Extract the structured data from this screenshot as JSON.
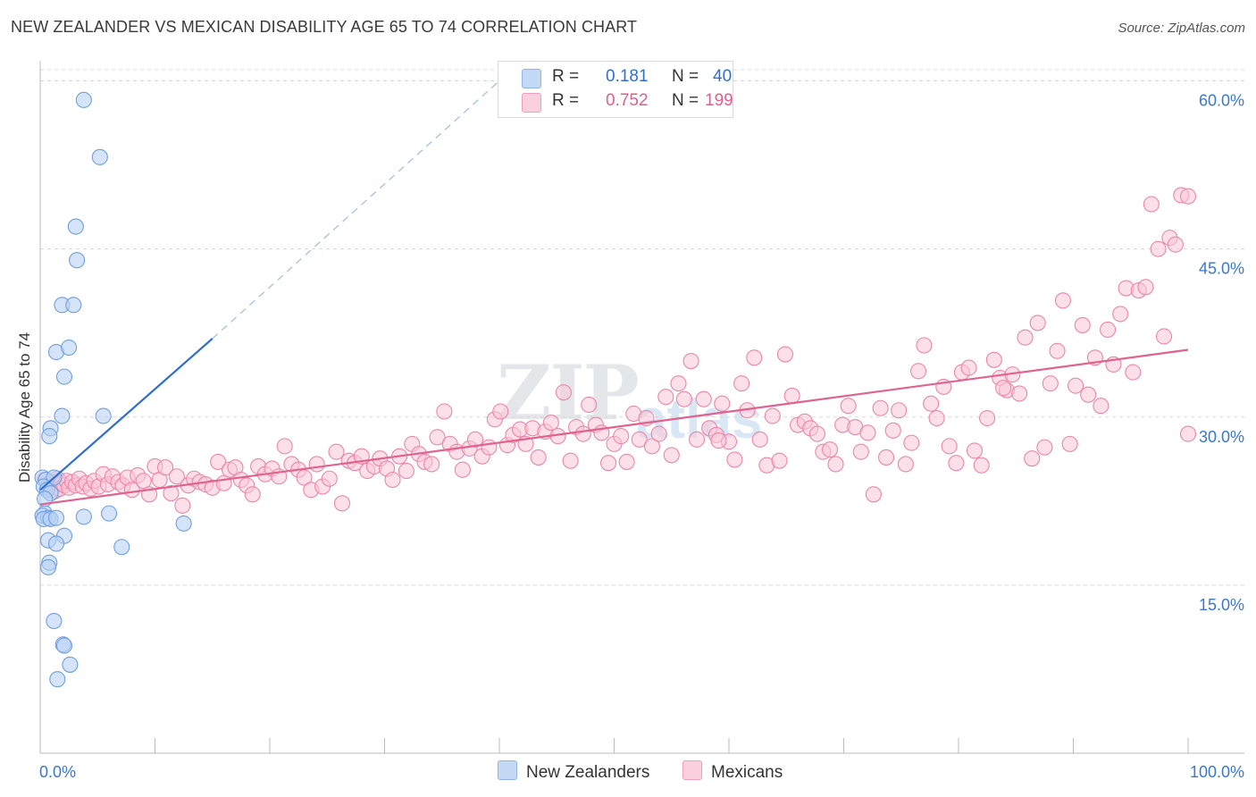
{
  "header": {
    "title": "NEW ZEALANDER VS MEXICAN DISABILITY AGE 65 TO 74 CORRELATION CHART",
    "source": "Source: ZipAtlas.com"
  },
  "watermark": {
    "part1": "ZIP",
    "part2": "atlas"
  },
  "legend": {
    "r_label": "R =",
    "n_label": "N =",
    "rows": [
      {
        "name": "New Zealanders",
        "r": "0.181",
        "n": "40",
        "color": "#a7c6f0"
      },
      {
        "name": "Mexicans",
        "r": "0.752",
        "n": "199",
        "color": "#f6b8cd"
      }
    ]
  },
  "colors": {
    "blue_fill": "#b9d2f3",
    "blue_stroke": "#6f9fe0",
    "blue_line": "#2e6fd0",
    "pink_fill": "#f9c6d7",
    "pink_stroke": "#ec86a8",
    "pink_line": "#e0628f",
    "axis_text": "#3a78d0",
    "grid": "#d8d8d8"
  },
  "chart_data": {
    "type": "scatter",
    "title": "NEW ZEALANDER VS MEXICAN DISABILITY AGE 65 TO 74 CORRELATION CHART",
    "xlabel": "",
    "ylabel": "Disability Age 65 to 74",
    "xlim": [
      0,
      100
    ],
    "ylim": [
      0,
      61
    ],
    "x_tick_labels": [
      "0.0%",
      "100.0%"
    ],
    "y_ticks": [
      15,
      30,
      45,
      60
    ],
    "y_tick_labels": [
      "15.0%",
      "30.0%",
      "45.0%",
      "60.0%"
    ],
    "series": [
      {
        "name": "New Zealanders",
        "trend": {
          "x": [
            0,
            15
          ],
          "y": [
            23.5,
            37
          ],
          "dashed_to": [
            40,
            60
          ]
        },
        "points": [
          [
            3.8,
            58.3
          ],
          [
            5.2,
            53.2
          ],
          [
            3.1,
            47
          ],
          [
            3.2,
            44
          ],
          [
            1.9,
            40
          ],
          [
            2.9,
            40
          ],
          [
            1.4,
            35.8
          ],
          [
            2.5,
            36.2
          ],
          [
            2.1,
            33.6
          ],
          [
            1.9,
            30.1
          ],
          [
            5.5,
            30.1
          ],
          [
            0.9,
            29
          ],
          [
            0.8,
            28.3
          ],
          [
            0.2,
            24.6
          ],
          [
            0.5,
            24.4
          ],
          [
            1.2,
            24.6
          ],
          [
            0.3,
            23.8
          ],
          [
            0.6,
            23.5
          ],
          [
            0.9,
            23.2
          ],
          [
            0.4,
            22.7
          ],
          [
            0.4,
            21.4
          ],
          [
            0.2,
            21.2
          ],
          [
            0.7,
            21
          ],
          [
            0.3,
            20.9
          ],
          [
            0.9,
            20.9
          ],
          [
            1.4,
            21
          ],
          [
            3.8,
            21.1
          ],
          [
            6.0,
            21.4
          ],
          [
            12.5,
            20.5
          ],
          [
            2.1,
            19.4
          ],
          [
            0.7,
            19
          ],
          [
            1.4,
            18.7
          ],
          [
            7.1,
            18.4
          ],
          [
            0.8,
            17
          ],
          [
            0.7,
            16.6
          ],
          [
            1.2,
            11.8
          ],
          [
            2.0,
            9.7
          ],
          [
            2.1,
            9.6
          ],
          [
            2.6,
            7.9
          ],
          [
            1.5,
            6.6
          ]
        ]
      },
      {
        "name": "Mexicans",
        "trend": {
          "x": [
            0,
            100
          ],
          "y": [
            22.2,
            36
          ]
        },
        "points": [
          [
            0.4,
            24.4
          ],
          [
            0.7,
            24.0
          ],
          [
            0.8,
            23.8
          ],
          [
            1.0,
            23.5
          ],
          [
            1.1,
            24.2
          ],
          [
            1.3,
            23.4
          ],
          [
            1.5,
            24.5
          ],
          [
            1.7,
            23.6
          ],
          [
            1.9,
            24.1
          ],
          [
            2.1,
            23.9
          ],
          [
            2.3,
            24.3
          ],
          [
            2.5,
            23.7
          ],
          [
            2.8,
            24.2
          ],
          [
            3.1,
            23.9
          ],
          [
            3.4,
            24.5
          ],
          [
            3.7,
            23.8
          ],
          [
            4.0,
            24.1
          ],
          [
            4.4,
            23.6
          ],
          [
            4.7,
            24.3
          ],
          [
            5.1,
            23.8
          ],
          [
            5.5,
            24.9
          ],
          [
            5.9,
            24.0
          ],
          [
            6.3,
            24.7
          ],
          [
            6.8,
            24.2
          ],
          [
            7.2,
            23.9
          ],
          [
            7.6,
            24.6
          ],
          [
            8.0,
            23.5
          ],
          [
            8.5,
            24.8
          ],
          [
            9.0,
            24.3
          ],
          [
            9.5,
            23.1
          ],
          [
            10.0,
            25.6
          ],
          [
            10.4,
            24.4
          ],
          [
            10.9,
            25.5
          ],
          [
            11.4,
            23.2
          ],
          [
            11.9,
            24.7
          ],
          [
            12.4,
            22.1
          ],
          [
            12.9,
            23.9
          ],
          [
            13.4,
            24.5
          ],
          [
            13.9,
            24.2
          ],
          [
            14.4,
            24.0
          ],
          [
            15.0,
            23.7
          ],
          [
            15.5,
            26.0
          ],
          [
            16.0,
            24.1
          ],
          [
            16.5,
            25.3
          ],
          [
            17.0,
            25.5
          ],
          [
            17.5,
            24.4
          ],
          [
            18.0,
            23.9
          ],
          [
            18.5,
            23.1
          ],
          [
            19.0,
            25.6
          ],
          [
            19.6,
            24.9
          ],
          [
            20.2,
            25.4
          ],
          [
            20.8,
            24.7
          ],
          [
            21.3,
            27.4
          ],
          [
            21.9,
            25.8
          ],
          [
            22.5,
            25.3
          ],
          [
            23.0,
            24.6
          ],
          [
            23.6,
            23.5
          ],
          [
            24.1,
            25.8
          ],
          [
            24.6,
            23.8
          ],
          [
            25.2,
            24.5
          ],
          [
            25.8,
            26.9
          ],
          [
            26.3,
            22.3
          ],
          [
            26.9,
            26.1
          ],
          [
            27.4,
            25.9
          ],
          [
            28.0,
            26.5
          ],
          [
            28.5,
            25.2
          ],
          [
            29.1,
            25.6
          ],
          [
            29.6,
            26.3
          ],
          [
            30.2,
            25.4
          ],
          [
            30.7,
            24.4
          ],
          [
            31.3,
            26.5
          ],
          [
            31.9,
            25.2
          ],
          [
            32.4,
            27.6
          ],
          [
            33.0,
            26.7
          ],
          [
            33.5,
            26.0
          ],
          [
            34.1,
            25.8
          ],
          [
            34.6,
            28.2
          ],
          [
            35.2,
            30.5
          ],
          [
            35.7,
            27.6
          ],
          [
            36.3,
            26.9
          ],
          [
            36.8,
            25.3
          ],
          [
            37.4,
            27.2
          ],
          [
            37.9,
            28.0
          ],
          [
            38.5,
            26.5
          ],
          [
            39.1,
            27.3
          ],
          [
            39.6,
            29.8
          ],
          [
            40.1,
            30.5
          ],
          [
            40.7,
            27.5
          ],
          [
            41.2,
            28.4
          ],
          [
            41.8,
            28.9
          ],
          [
            42.3,
            27.6
          ],
          [
            42.9,
            29.0
          ],
          [
            43.4,
            26.4
          ],
          [
            44.0,
            28.7
          ],
          [
            44.5,
            29.5
          ],
          [
            45.1,
            28.3
          ],
          [
            45.6,
            32.2
          ],
          [
            46.2,
            26.1
          ],
          [
            46.7,
            29.1
          ],
          [
            47.3,
            28.5
          ],
          [
            47.8,
            31.1
          ],
          [
            48.4,
            29.3
          ],
          [
            48.9,
            28.6
          ],
          [
            49.5,
            25.9
          ],
          [
            50.0,
            27.6
          ],
          [
            50.6,
            28.3
          ],
          [
            51.1,
            26.0
          ],
          [
            51.7,
            30.3
          ],
          [
            52.2,
            28.0
          ],
          [
            52.8,
            29.9
          ],
          [
            53.3,
            27.4
          ],
          [
            53.9,
            28.5
          ],
          [
            54.5,
            31.8
          ],
          [
            55.0,
            26.6
          ],
          [
            55.6,
            33.0
          ],
          [
            56.1,
            31.6
          ],
          [
            56.7,
            35.0
          ],
          [
            57.2,
            28.0
          ],
          [
            57.8,
            31.6
          ],
          [
            58.3,
            29.0
          ],
          [
            58.9,
            28.4
          ],
          [
            59.4,
            31.2
          ],
          [
            60.0,
            27.8
          ],
          [
            60.5,
            26.2
          ],
          [
            61.1,
            33.0
          ],
          [
            61.6,
            30.6
          ],
          [
            62.2,
            35.3
          ],
          [
            62.7,
            28.0
          ],
          [
            63.3,
            25.7
          ],
          [
            63.8,
            30.1
          ],
          [
            64.4,
            26.1
          ],
          [
            64.9,
            35.6
          ],
          [
            65.5,
            31.9
          ],
          [
            66.0,
            29.3
          ],
          [
            66.6,
            29.6
          ],
          [
            67.1,
            29.0
          ],
          [
            67.7,
            28.5
          ],
          [
            68.2,
            26.9
          ],
          [
            68.8,
            27.1
          ],
          [
            69.3,
            25.8
          ],
          [
            69.9,
            29.3
          ],
          [
            70.4,
            31.0
          ],
          [
            71.0,
            29.1
          ],
          [
            71.5,
            26.9
          ],
          [
            72.1,
            28.6
          ],
          [
            72.6,
            23.1
          ],
          [
            73.2,
            30.8
          ],
          [
            73.7,
            26.4
          ],
          [
            74.3,
            28.8
          ],
          [
            74.8,
            30.6
          ],
          [
            75.4,
            25.8
          ],
          [
            75.9,
            27.7
          ],
          [
            76.5,
            34.1
          ],
          [
            77.0,
            36.4
          ],
          [
            77.6,
            31.2
          ],
          [
            78.1,
            29.9
          ],
          [
            78.7,
            32.7
          ],
          [
            79.2,
            27.4
          ],
          [
            79.8,
            25.9
          ],
          [
            80.3,
            34.0
          ],
          [
            80.9,
            34.4
          ],
          [
            81.4,
            27.0
          ],
          [
            82.0,
            25.7
          ],
          [
            82.5,
            29.9
          ],
          [
            83.1,
            35.1
          ],
          [
            83.6,
            33.5
          ],
          [
            84.2,
            32.4
          ],
          [
            84.7,
            33.8
          ],
          [
            85.3,
            32.1
          ],
          [
            85.8,
            37.1
          ],
          [
            86.4,
            26.3
          ],
          [
            86.9,
            38.4
          ],
          [
            87.5,
            27.3
          ],
          [
            88.0,
            33.0
          ],
          [
            88.6,
            35.9
          ],
          [
            89.1,
            40.4
          ],
          [
            89.7,
            27.6
          ],
          [
            90.2,
            32.8
          ],
          [
            90.8,
            38.2
          ],
          [
            91.3,
            32.0
          ],
          [
            91.9,
            35.3
          ],
          [
            92.4,
            31.0
          ],
          [
            93.0,
            37.8
          ],
          [
            93.5,
            34.7
          ],
          [
            94.1,
            39.2
          ],
          [
            94.6,
            41.5
          ],
          [
            95.2,
            34.0
          ],
          [
            95.7,
            41.3
          ],
          [
            96.3,
            41.6
          ],
          [
            96.8,
            49.0
          ],
          [
            97.4,
            45.0
          ],
          [
            97.9,
            37.2
          ],
          [
            98.4,
            46.0
          ],
          [
            98.9,
            45.4
          ],
          [
            99.4,
            49.8
          ],
          [
            100.0,
            28.5
          ],
          [
            100.0,
            49.7
          ],
          [
            83.9,
            32.6
          ],
          [
            59.1,
            27.9
          ]
        ]
      }
    ]
  }
}
